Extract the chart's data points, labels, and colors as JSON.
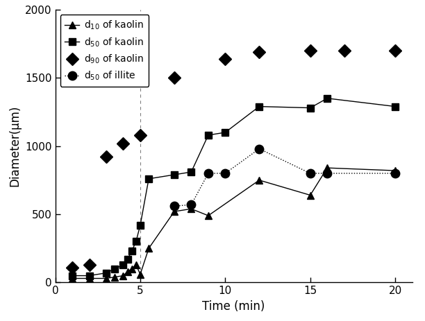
{
  "title": "",
  "xlabel": "Time (min)",
  "ylabel": "Diameter(μm)",
  "xlim": [
    0,
    21
  ],
  "ylim": [
    0,
    2000
  ],
  "xticks": [
    0,
    5,
    10,
    15,
    20
  ],
  "yticks": [
    0,
    500,
    1000,
    1500,
    2000
  ],
  "vline_x": 5,
  "d10_kaolin": {
    "x": [
      1,
      2,
      3,
      3.5,
      4,
      4.25,
      4.5,
      4.75,
      5,
      5.5,
      7,
      8,
      9,
      12,
      15,
      16,
      20
    ],
    "y": [
      30,
      30,
      30,
      40,
      50,
      80,
      100,
      130,
      60,
      250,
      520,
      540,
      490,
      750,
      640,
      840,
      820
    ],
    "marker": "^",
    "color": "black",
    "linestyle": "-",
    "label": "d$_{10}$ of kaolin",
    "markersize": 7,
    "linewidth": 1.0
  },
  "d50_kaolin": {
    "x": [
      1,
      2,
      3,
      3.5,
      4,
      4.25,
      4.5,
      4.75,
      5,
      5.5,
      7,
      8,
      9,
      10,
      12,
      15,
      16,
      20
    ],
    "y": [
      50,
      50,
      70,
      100,
      130,
      170,
      230,
      300,
      420,
      760,
      790,
      810,
      1080,
      1100,
      1290,
      1280,
      1350,
      1290
    ],
    "marker": "s",
    "color": "black",
    "linestyle": "-",
    "label": "d$_{50}$ of kaolin",
    "markersize": 7,
    "linewidth": 1.0
  },
  "d90_kaolin": {
    "x": [
      1,
      2,
      3,
      4,
      5,
      7,
      10,
      12,
      15,
      17,
      20
    ],
    "y": [
      110,
      130,
      920,
      1020,
      1080,
      1500,
      1640,
      1690,
      1700,
      1700,
      1700
    ],
    "marker": "D",
    "color": "black",
    "linestyle": "none",
    "label": "d$_{90}$ of kaolin",
    "markersize": 9,
    "linewidth": 0
  },
  "d50_illite": {
    "x": [
      7,
      8,
      9,
      10,
      12,
      15,
      16,
      20
    ],
    "y": [
      560,
      570,
      800,
      800,
      980,
      800,
      800,
      800
    ],
    "marker": "o",
    "color": "black",
    "linestyle": ":",
    "label": "d$_{50}$ of illite",
    "markersize": 9,
    "linewidth": 1.0
  },
  "background_color": "#ffffff",
  "figsize": [
    6.12,
    4.63
  ],
  "dpi": 100
}
